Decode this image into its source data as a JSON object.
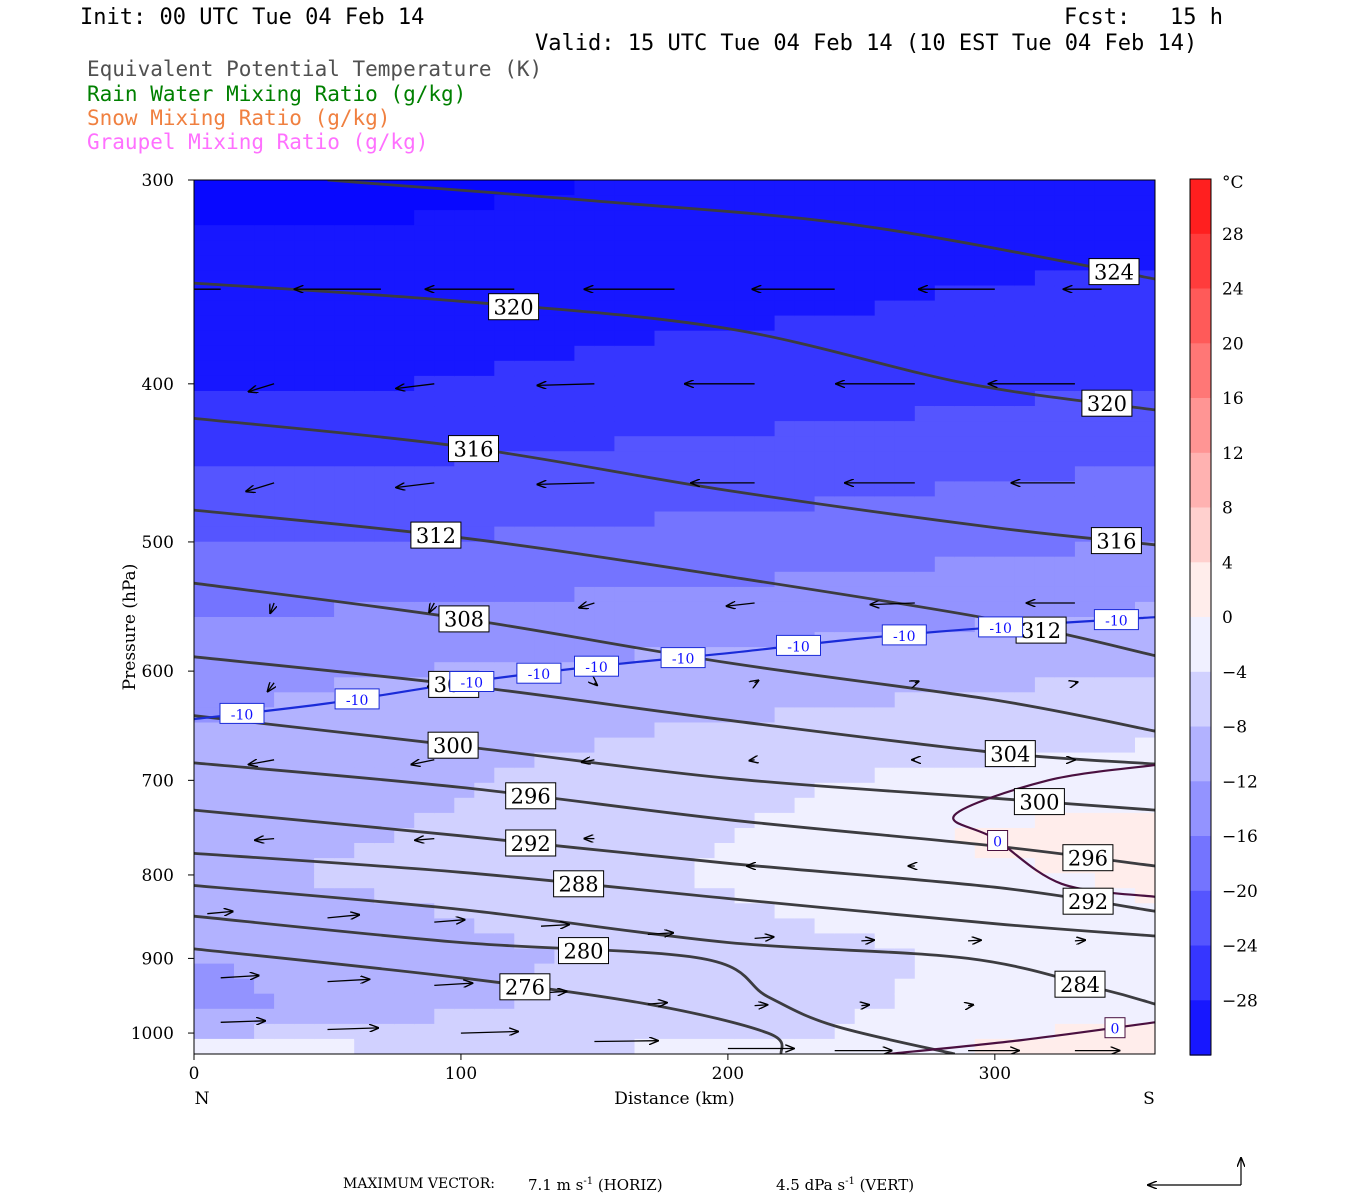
{
  "header": {
    "init": "Init: 00 UTC Tue 04 Feb 14",
    "fcst": "Fcst:   15 h",
    "valid": "Valid: 15 UTC Tue 04 Feb 14 (10 EST Tue 04 Feb 14)"
  },
  "legend": [
    {
      "text": "Equivalent Potential Temperature (K)",
      "color": "#505050"
    },
    {
      "text": "Rain Water Mixing Ratio (g/kg)",
      "color": "#008000"
    },
    {
      "text": "Snow Mixing Ratio (g/kg)",
      "color": "#f08040"
    },
    {
      "text": "Graupel Mixing Ratio (g/kg)",
      "color": "#ff70ff"
    }
  ],
  "chart_data": {
    "type": "contour",
    "xlabel": "Distance (km)",
    "ylabel": "Pressure (hPa)",
    "x_range": [
      0,
      360
    ],
    "y_range": [
      300,
      1030
    ],
    "y_log": true,
    "x_ticks": [
      0,
      100,
      200,
      300
    ],
    "y_ticks": [
      300,
      400,
      500,
      600,
      700,
      800,
      900,
      1000
    ],
    "x_end_labels": {
      "left": "N",
      "right": "S"
    },
    "colorbar": {
      "unit": "°C",
      "levels": [
        28,
        24,
        20,
        16,
        12,
        8,
        4,
        0,
        -4,
        -8,
        -12,
        -16,
        -20,
        -24,
        -28
      ],
      "range": [
        -32,
        32
      ]
    },
    "theta_e_contours": [
      {
        "value": 324,
        "label": "324",
        "points": [
          [
            50,
            300
          ],
          [
            150,
            309
          ],
          [
            250,
            320
          ],
          [
            360,
            345
          ]
        ]
      },
      {
        "value": 320,
        "label": "320",
        "points": [
          [
            0,
            347
          ],
          [
            100,
            356
          ],
          [
            200,
            370
          ],
          [
            290,
            400
          ],
          [
            360,
            415
          ]
        ]
      },
      {
        "value": 316,
        "label": "316",
        "points": [
          [
            0,
            420
          ],
          [
            100,
            437
          ],
          [
            200,
            465
          ],
          [
            300,
            490
          ],
          [
            360,
            502
          ]
        ]
      },
      {
        "value": 312,
        "label": "312",
        "points": [
          [
            0,
            478
          ],
          [
            100,
            497
          ],
          [
            200,
            525
          ],
          [
            300,
            558
          ],
          [
            360,
            587
          ]
        ]
      },
      {
        "value": 308,
        "label": "308",
        "points": [
          [
            0,
            530
          ],
          [
            100,
            557
          ],
          [
            200,
            593
          ],
          [
            300,
            625
          ],
          [
            360,
            653
          ]
        ]
      },
      {
        "value": 304,
        "label": "304",
        "points": [
          [
            0,
            588
          ],
          [
            100,
            612
          ],
          [
            200,
            643
          ],
          [
            300,
            673
          ],
          [
            360,
            684
          ]
        ]
      },
      {
        "value": 300,
        "label": "300",
        "points": [
          [
            0,
            639
          ],
          [
            100,
            667
          ],
          [
            200,
            698
          ],
          [
            300,
            718
          ],
          [
            360,
            730
          ]
        ]
      },
      {
        "value": 296,
        "label": "296",
        "points": [
          [
            0,
            683
          ],
          [
            100,
            707
          ],
          [
            200,
            740
          ],
          [
            300,
            768
          ],
          [
            360,
            790
          ]
        ]
      },
      {
        "value": 292,
        "label": "292",
        "points": [
          [
            0,
            730
          ],
          [
            100,
            757
          ],
          [
            200,
            787
          ],
          [
            300,
            814
          ],
          [
            360,
            842
          ]
        ]
      },
      {
        "value": 288,
        "label": "288",
        "points": [
          [
            0,
            776
          ],
          [
            100,
            797
          ],
          [
            200,
            827
          ],
          [
            300,
            857
          ],
          [
            360,
            872
          ]
        ]
      },
      {
        "value": 284,
        "label": "284",
        "points": [
          [
            0,
            812
          ],
          [
            100,
            840
          ],
          [
            200,
            880
          ],
          [
            290,
            900
          ],
          [
            340,
            940
          ],
          [
            360,
            960
          ]
        ]
      },
      {
        "value": 280,
        "label": "280",
        "points": [
          [
            0,
            848
          ],
          [
            100,
            880
          ],
          [
            190,
            900
          ],
          [
            215,
            950
          ],
          [
            240,
            990
          ],
          [
            285,
            1030
          ]
        ]
      },
      {
        "value": 276,
        "label": "276",
        "points": [
          [
            0,
            888
          ],
          [
            100,
            925
          ],
          [
            170,
            960
          ],
          [
            215,
            1000
          ],
          [
            220,
            1030
          ]
        ]
      }
    ],
    "temperature_contours": [
      {
        "value": -10,
        "label": "-10",
        "points": [
          [
            0,
            642
          ],
          [
            50,
            628
          ],
          [
            100,
            610
          ],
          [
            150,
            596
          ],
          [
            200,
            585
          ],
          [
            250,
            573
          ],
          [
            300,
            564
          ],
          [
            360,
            556
          ]
        ]
      },
      {
        "value": 0,
        "label": "0",
        "points": [
          [
            360,
            685
          ],
          [
            320,
            700
          ],
          [
            285,
            735
          ],
          [
            300,
            760
          ],
          [
            325,
            810
          ],
          [
            360,
            825
          ]
        ]
      },
      {
        "value": 0,
        "label": "0",
        "points": [
          [
            260,
            1030
          ],
          [
            310,
            1010
          ],
          [
            360,
            985
          ]
        ]
      }
    ],
    "wind_vectors": [
      {
        "x": 10,
        "p": 350,
        "u": -6.5,
        "w": 0.0
      },
      {
        "x": 70,
        "p": 350,
        "u": -6.8,
        "w": 0.0
      },
      {
        "x": 120,
        "p": 350,
        "u": -7.0,
        "w": 0.0
      },
      {
        "x": 180,
        "p": 350,
        "u": -7.1,
        "w": 0.0
      },
      {
        "x": 240,
        "p": 350,
        "u": -6.5,
        "w": 0.0
      },
      {
        "x": 300,
        "p": 350,
        "u": -6.0,
        "w": 0.0
      },
      {
        "x": 340,
        "p": 350,
        "u": -3.0,
        "w": 0.0
      },
      {
        "x": 30,
        "p": 400,
        "u": -2.0,
        "w": 1.0
      },
      {
        "x": 90,
        "p": 400,
        "u": -3.0,
        "w": 0.6
      },
      {
        "x": 150,
        "p": 400,
        "u": -4.5,
        "w": 0.2
      },
      {
        "x": 210,
        "p": 400,
        "u": -5.5,
        "w": 0.0
      },
      {
        "x": 270,
        "p": 400,
        "u": -6.2,
        "w": 0.0
      },
      {
        "x": 330,
        "p": 400,
        "u": -6.8,
        "w": 0.0
      },
      {
        "x": 30,
        "p": 460,
        "u": -2.2,
        "w": 1.1
      },
      {
        "x": 90,
        "p": 460,
        "u": -3.0,
        "w": 0.6
      },
      {
        "x": 150,
        "p": 460,
        "u": -4.5,
        "w": 0.2
      },
      {
        "x": 210,
        "p": 460,
        "u": -5.0,
        "w": 0.0
      },
      {
        "x": 270,
        "p": 460,
        "u": -5.5,
        "w": 0.0
      },
      {
        "x": 330,
        "p": 460,
        "u": -5.0,
        "w": 0.0
      },
      {
        "x": 30,
        "p": 545,
        "u": -0.3,
        "w": 1.3
      },
      {
        "x": 90,
        "p": 545,
        "u": -0.4,
        "w": 1.2
      },
      {
        "x": 150,
        "p": 545,
        "u": -1.2,
        "w": 0.6
      },
      {
        "x": 210,
        "p": 545,
        "u": -2.2,
        "w": 0.4
      },
      {
        "x": 270,
        "p": 545,
        "u": -3.5,
        "w": 0.2
      },
      {
        "x": 330,
        "p": 545,
        "u": -3.8,
        "w": 0.0
      },
      {
        "x": 30,
        "p": 610,
        "u": -0.5,
        "w": 1.1
      },
      {
        "x": 90,
        "p": 610,
        "u": -0.5,
        "w": 0.5
      },
      {
        "x": 150,
        "p": 610,
        "u": 0.2,
        "w": 0.3
      },
      {
        "x": 210,
        "p": 610,
        "u": 0.3,
        "w": -0.3
      },
      {
        "x": 270,
        "p": 610,
        "u": 0.3,
        "w": -0.2
      },
      {
        "x": 330,
        "p": 610,
        "u": 0.2,
        "w": -0.1
      },
      {
        "x": 30,
        "p": 680,
        "u": -2.0,
        "w": 0.6
      },
      {
        "x": 90,
        "p": 680,
        "u": -1.8,
        "w": 0.6
      },
      {
        "x": 150,
        "p": 680,
        "u": -1.0,
        "w": 0.3
      },
      {
        "x": 210,
        "p": 680,
        "u": -0.4,
        "w": 0.1
      },
      {
        "x": 270,
        "p": 680,
        "u": -0.2,
        "w": 0.0
      },
      {
        "x": 330,
        "p": 680,
        "u": 0.0,
        "w": 0.0
      },
      {
        "x": 30,
        "p": 760,
        "u": -1.5,
        "w": 0.2
      },
      {
        "x": 90,
        "p": 760,
        "u": -1.5,
        "w": 0.2
      },
      {
        "x": 150,
        "p": 760,
        "u": -0.8,
        "w": 0.0
      },
      {
        "x": 210,
        "p": 790,
        "u": -0.6,
        "w": 0.0
      },
      {
        "x": 270,
        "p": 790,
        "u": -0.5,
        "w": 0.0
      },
      {
        "x": 330,
        "p": 790,
        "u": -0.4,
        "w": 0.0
      },
      {
        "x": 5,
        "p": 845,
        "u": 2.0,
        "w": -0.3
      },
      {
        "x": 50,
        "p": 850,
        "u": 2.5,
        "w": -0.4
      },
      {
        "x": 90,
        "p": 855,
        "u": 2.4,
        "w": -0.3
      },
      {
        "x": 130,
        "p": 860,
        "u": 2.2,
        "w": -0.2
      },
      {
        "x": 170,
        "p": 870,
        "u": 2.0,
        "w": -0.2
      },
      {
        "x": 210,
        "p": 875,
        "u": 1.5,
        "w": -0.2
      },
      {
        "x": 250,
        "p": 878,
        "u": 1.0,
        "w": -0.1
      },
      {
        "x": 290,
        "p": 878,
        "u": 1.0,
        "w": -0.1
      },
      {
        "x": 330,
        "p": 878,
        "u": 0.8,
        "w": -0.1
      },
      {
        "x": 10,
        "p": 925,
        "u": 3.0,
        "w": -0.3
      },
      {
        "x": 50,
        "p": 930,
        "u": 3.3,
        "w": -0.3
      },
      {
        "x": 90,
        "p": 935,
        "u": 3.0,
        "w": -0.3
      },
      {
        "x": 130,
        "p": 945,
        "u": 2.0,
        "w": -0.2
      },
      {
        "x": 170,
        "p": 960,
        "u": 1.5,
        "w": -0.2
      },
      {
        "x": 210,
        "p": 962,
        "u": 1.0,
        "w": -0.1
      },
      {
        "x": 250,
        "p": 962,
        "u": 0.6,
        "w": -0.1
      },
      {
        "x": 290,
        "p": 962,
        "u": 0.4,
        "w": -0.1
      },
      {
        "x": 10,
        "p": 985,
        "u": 3.5,
        "w": -0.2
      },
      {
        "x": 50,
        "p": 995,
        "u": 4.0,
        "w": -0.2
      },
      {
        "x": 100,
        "p": 1000,
        "u": 4.5,
        "w": -0.2
      },
      {
        "x": 150,
        "p": 1012,
        "u": 5.0,
        "w": -0.1
      },
      {
        "x": 200,
        "p": 1022,
        "u": 5.2,
        "w": 0.0
      },
      {
        "x": 240,
        "p": 1025,
        "u": 4.5,
        "w": 0.0
      },
      {
        "x": 290,
        "p": 1025,
        "u": 4.0,
        "w": 0.0
      },
      {
        "x": 330,
        "p": 1025,
        "u": 3.5,
        "w": 0.0
      }
    ],
    "temperature_field": [
      {
        "x": 0,
        "t_at": [
          [
            300,
            -33
          ],
          [
            400,
            -28
          ],
          [
            500,
            -20
          ],
          [
            600,
            -13
          ],
          [
            700,
            -11
          ],
          [
            800,
            -9
          ],
          [
            900,
            -12
          ],
          [
            960,
            -14
          ],
          [
            1000,
            -8
          ],
          [
            1030,
            0
          ]
        ]
      },
      {
        "x": 80,
        "t_at": [
          [
            300,
            -33
          ],
          [
            400,
            -28
          ],
          [
            500,
            -20
          ],
          [
            600,
            -12
          ],
          [
            700,
            -9
          ],
          [
            800,
            -7
          ],
          [
            900,
            -10
          ],
          [
            960,
            -9
          ],
          [
            1000,
            -7
          ],
          [
            1030,
            -3
          ]
        ]
      },
      {
        "x": 160,
        "t_at": [
          [
            300,
            -32
          ],
          [
            400,
            -27
          ],
          [
            500,
            -19
          ],
          [
            600,
            -11
          ],
          [
            700,
            -6
          ],
          [
            800,
            -5
          ],
          [
            900,
            -7
          ],
          [
            960,
            -7
          ],
          [
            1000,
            -6
          ],
          [
            1030,
            -3
          ]
        ]
      },
      {
        "x": 240,
        "t_at": [
          [
            300,
            -32
          ],
          [
            400,
            -26
          ],
          [
            500,
            -18
          ],
          [
            600,
            -10
          ],
          [
            700,
            -4
          ],
          [
            800,
            -2
          ],
          [
            900,
            -5
          ],
          [
            960,
            -5
          ],
          [
            1000,
            -4
          ],
          [
            1030,
            -2
          ]
        ]
      },
      {
        "x": 300,
        "t_at": [
          [
            300,
            -31
          ],
          [
            400,
            -25
          ],
          [
            500,
            -17
          ],
          [
            600,
            -9
          ],
          [
            700,
            -3
          ],
          [
            760,
            1
          ],
          [
            800,
            -1
          ],
          [
            900,
            -3
          ],
          [
            960,
            -2
          ],
          [
            1030,
            1
          ]
        ]
      },
      {
        "x": 360,
        "t_at": [
          [
            300,
            -31
          ],
          [
            400,
            -24
          ],
          [
            500,
            -16
          ],
          [
            600,
            -8
          ],
          [
            700,
            -2
          ],
          [
            760,
            2
          ],
          [
            800,
            1
          ],
          [
            900,
            -2
          ],
          [
            960,
            -1
          ],
          [
            1030,
            2
          ]
        ]
      }
    ]
  },
  "footer": {
    "max_vector": "MAXIMUM VECTOR:",
    "horiz": "7.1 m s",
    "horiz_sup": "-1",
    "horiz_tail": " (HORIZ)",
    "vert": "4.5 dPa s",
    "vert_sup": "-1",
    "vert_tail": " (VERT)"
  }
}
